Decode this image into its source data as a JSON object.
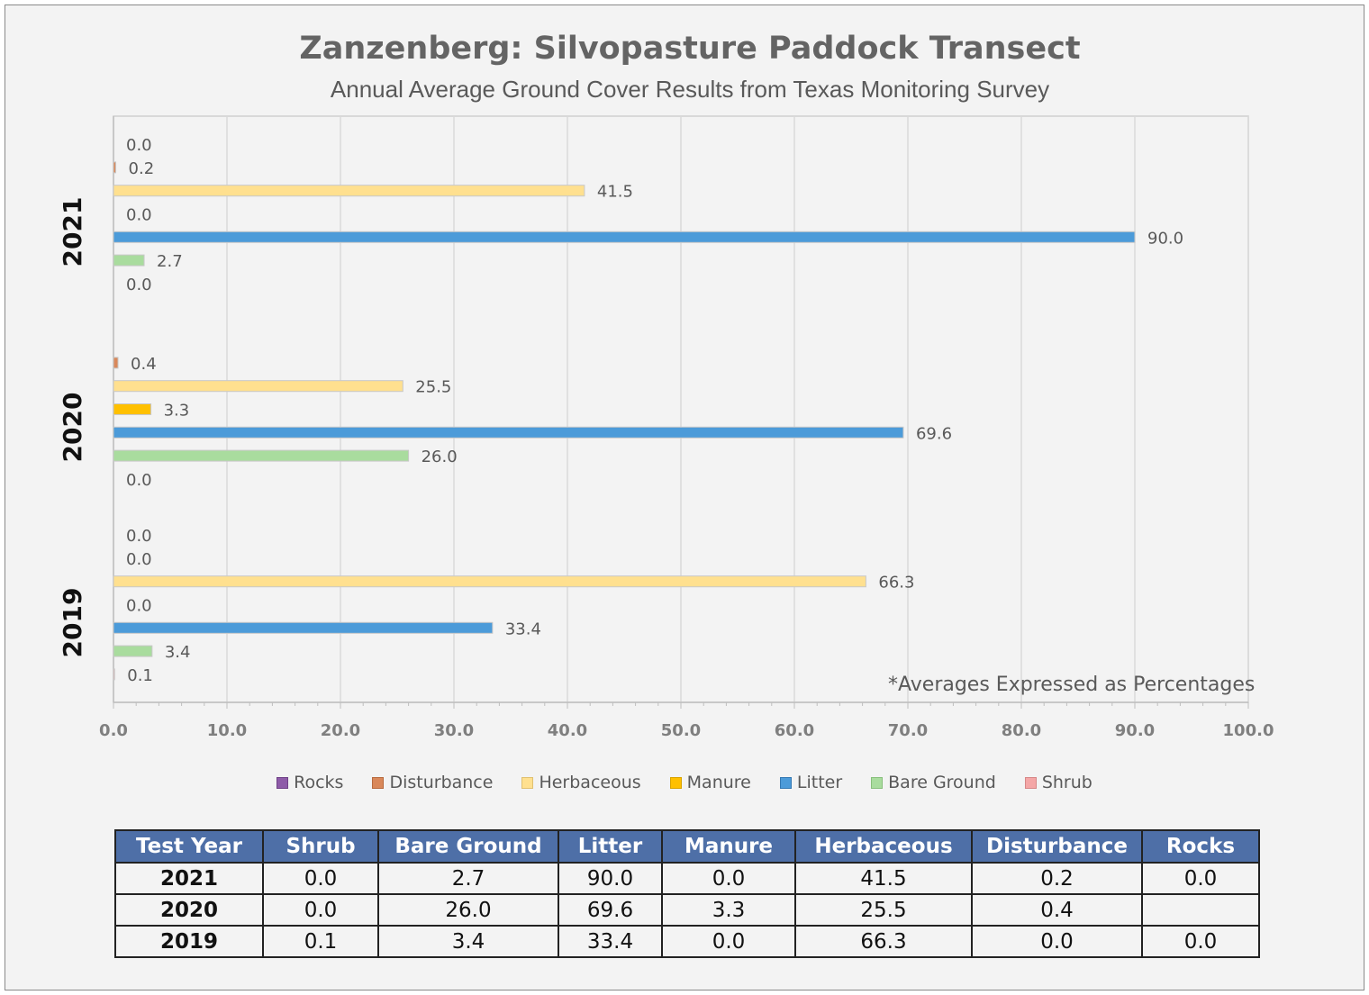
{
  "chart_data": {
    "type": "bar",
    "orientation": "horizontal",
    "title": "Zanzenberg: Silvopasture Paddock Transect",
    "subtitle": "Annual Average Ground Cover Results from Texas Monitoring Survey",
    "note": "*Averages Expressed as Percentages",
    "xlim": [
      0,
      100
    ],
    "x_ticks": [
      "0.0",
      "10.0",
      "20.0",
      "30.0",
      "40.0",
      "50.0",
      "60.0",
      "70.0",
      "80.0",
      "90.0",
      "100.0"
    ],
    "grid": true,
    "legend_position": "bottom",
    "categories": [
      "2021",
      "2020",
      "2019"
    ],
    "series": [
      {
        "name": "Rocks",
        "color": "#8e5ba8",
        "values": [
          0.0,
          null,
          0.0
        ],
        "labels": [
          "0.0",
          "",
          "0.0"
        ]
      },
      {
        "name": "Disturbance",
        "color": "#d9885a",
        "values": [
          0.2,
          0.4,
          0.0
        ],
        "labels": [
          "0.2",
          "0.4",
          "0.0"
        ]
      },
      {
        "name": "Herbaceous",
        "color": "#ffe08f",
        "values": [
          41.5,
          25.5,
          66.3
        ],
        "labels": [
          "41.5",
          "25.5",
          "66.3"
        ]
      },
      {
        "name": "Manure",
        "color": "#ffc000",
        "values": [
          0.0,
          3.3,
          0.0
        ],
        "labels": [
          "0.0",
          "3.3",
          "0.0"
        ]
      },
      {
        "name": "Litter",
        "color": "#4c9bd9",
        "values": [
          90.0,
          69.6,
          33.4
        ],
        "labels": [
          "90.0",
          "69.6",
          "33.4"
        ]
      },
      {
        "name": "Bare Ground",
        "color": "#a9dc9e",
        "values": [
          2.7,
          26.0,
          3.4
        ],
        "labels": [
          "2.7",
          "26.0",
          "3.4"
        ]
      },
      {
        "name": "Shrub",
        "color": "#f4a6a6",
        "values": [
          0.0,
          0.0,
          0.1
        ],
        "labels": [
          "0.0",
          "0.0",
          "0.1"
        ]
      }
    ]
  },
  "legend": [
    "Rocks",
    "Disturbance",
    "Herbaceous",
    "Manure",
    "Litter",
    "Bare Ground",
    "Shrub"
  ],
  "table": {
    "headers": [
      "Test Year",
      "Shrub",
      "Bare Ground",
      "Litter",
      "Manure",
      "Herbaceous",
      "Disturbance",
      "Rocks"
    ],
    "rows": [
      [
        "2021",
        "0.0",
        "2.7",
        "90.0",
        "0.0",
        "41.5",
        "0.2",
        "0.0"
      ],
      [
        "2020",
        "0.0",
        "26.0",
        "69.6",
        "3.3",
        "25.5",
        "0.4",
        ""
      ],
      [
        "2019",
        "0.1",
        "3.4",
        "33.4",
        "0.0",
        "66.3",
        "0.0",
        "0.0"
      ]
    ]
  }
}
